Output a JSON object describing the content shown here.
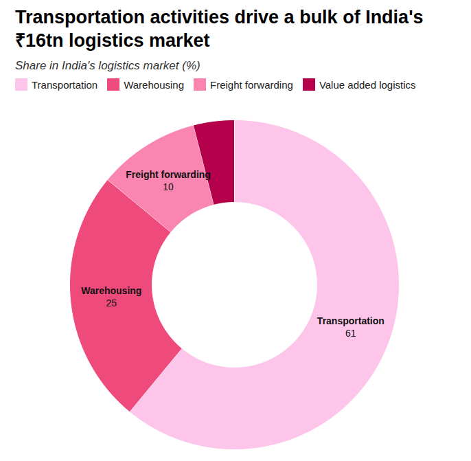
{
  "chart_data": {
    "type": "donut",
    "title": "Transportation activities drive a bulk of India's ₹16tn logistics market",
    "subtitle": "Share in India's logistics market (%)",
    "categories": [
      "Transportation",
      "Warehousing",
      "Freight forwarding",
      "Value added logistics"
    ],
    "values": [
      61,
      25,
      10,
      4
    ],
    "colors": [
      "#fcc5e9",
      "#ef4a7c",
      "#f985b0",
      "#b5004b"
    ],
    "data_labels": true,
    "value_labels": [
      "61",
      "25",
      "10",
      null
    ],
    "legend": "top"
  }
}
